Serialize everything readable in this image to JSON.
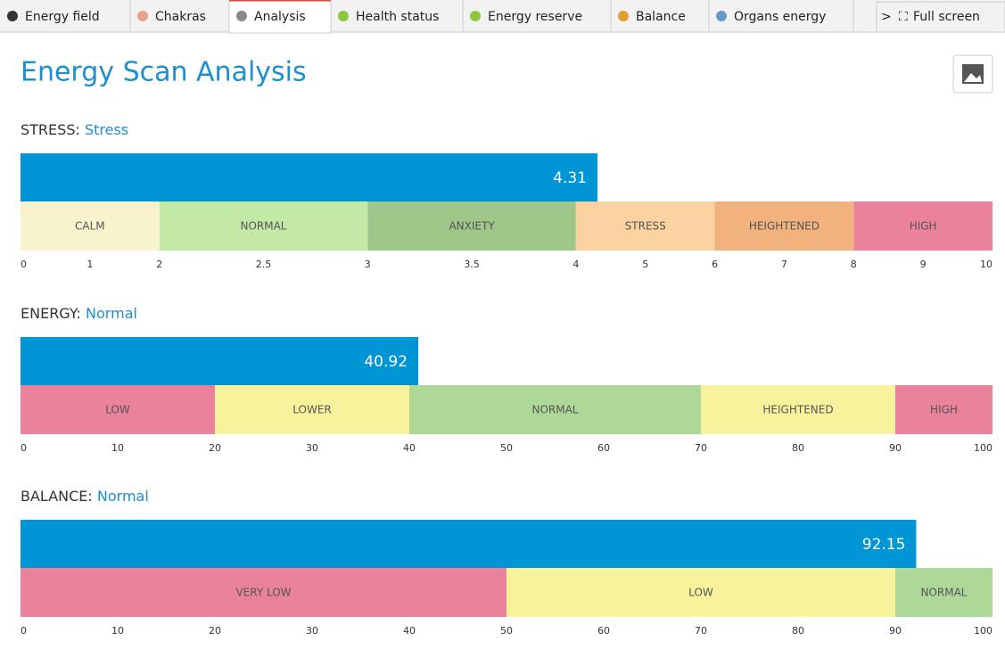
{
  "tabs": [
    {
      "label": "Energy field"
    },
    {
      "label": "Chakras"
    },
    {
      "label": "Analysis",
      "active": true
    },
    {
      "label": "Health status"
    },
    {
      "label": "Energy reserve"
    },
    {
      "label": "Balance"
    },
    {
      "label": "Organs energy"
    }
  ],
  "more": ">",
  "fullscreen": "Full screen",
  "title": "Energy Scan Analysis",
  "gauges": [
    {
      "name": "STRESS:",
      "status": "Stress",
      "value": 4.31,
      "color": "#0096d6",
      "zones": [
        {
          "label": "CALM",
          "from": 0,
          "to": 2,
          "color": "#f8f3cc"
        },
        {
          "label": "NORMAL",
          "from": 2,
          "to": 3,
          "color": "#c4e9a7"
        },
        {
          "label": "ANXIETY",
          "from": 3,
          "to": 4,
          "color": "#9fc78a"
        },
        {
          "label": "STRESS",
          "from": 4,
          "to": 6,
          "color": "#fad3a0"
        },
        {
          "label": "HEIGHTENED",
          "from": 6,
          "to": 8,
          "color": "#f2b27d"
        },
        {
          "label": "HIGH",
          "from": 8,
          "to": 10,
          "color": "#e9829a"
        }
      ],
      "ticks": [
        0,
        1,
        2,
        2.5,
        3,
        3.5,
        4,
        5,
        6,
        7,
        8,
        9,
        10
      ]
    },
    {
      "name": "ENERGY:",
      "status": "Normal",
      "value": 40.92,
      "color": "#0096d6",
      "zones": [
        {
          "label": "LOW",
          "from": 0,
          "to": 20,
          "color": "#e9829a"
        },
        {
          "label": "LOWER",
          "from": 20,
          "to": 40,
          "color": "#f8f29c"
        },
        {
          "label": "NORMAL",
          "from": 40,
          "to": 70,
          "color": "#aed898"
        },
        {
          "label": "HEIGHTENED",
          "from": 70,
          "to": 90,
          "color": "#f8f29c"
        },
        {
          "label": "HIGH",
          "from": 90,
          "to": 100,
          "color": "#e9829a"
        }
      ],
      "ticks": [
        0,
        10,
        20,
        30,
        40,
        50,
        60,
        70,
        80,
        90,
        100
      ]
    },
    {
      "name": "BALANCE:",
      "status": "Normal",
      "value": 92.15,
      "color": "#0096d6",
      "zones": [
        {
          "label": "VERY LOW",
          "from": 0,
          "to": 50,
          "color": "#e9829a"
        },
        {
          "label": "LOW",
          "from": 50,
          "to": 90,
          "color": "#f8f29c"
        },
        {
          "label": "NORMAL",
          "from": 90,
          "to": 100,
          "color": "#aed898"
        }
      ],
      "ticks": [
        0,
        10,
        20,
        30,
        40,
        50,
        60,
        70,
        80,
        90,
        100
      ]
    }
  ]
}
